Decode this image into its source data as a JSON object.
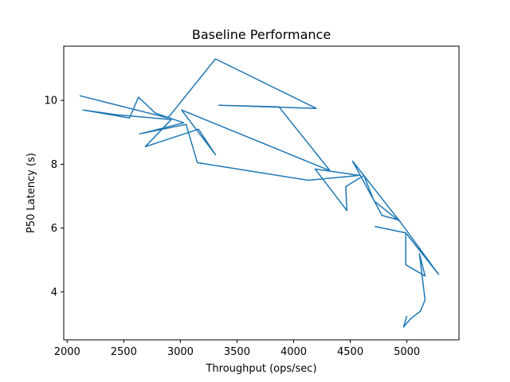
{
  "chart_data": {
    "type": "line",
    "title": "Baseline Performance",
    "xlabel": "Throughput (ops/sec)",
    "ylabel": "P50 Latency (s)",
    "xlim": [
      1970,
      5460
    ],
    "ylim": [
      2.5,
      11.7
    ],
    "xticks": [
      2000,
      2500,
      3000,
      3500,
      4000,
      4500,
      5000
    ],
    "yticks": [
      4,
      6,
      8,
      10
    ],
    "grid": false,
    "series": [
      {
        "color": "#1f77b4",
        "points": [
          [
            2110,
            10.15
          ],
          [
            2890,
            9.45
          ],
          [
            3310,
            11.3
          ],
          [
            4200,
            9.75
          ],
          [
            3340,
            9.85
          ],
          [
            3870,
            9.8
          ],
          [
            4320,
            7.8
          ],
          [
            3010,
            9.7
          ],
          [
            3310,
            8.3
          ],
          [
            3160,
            9.1
          ],
          [
            2690,
            8.55
          ],
          [
            2920,
            9.4
          ],
          [
            2440,
            9.55
          ],
          [
            2140,
            9.7
          ],
          [
            2550,
            9.45
          ],
          [
            2630,
            10.1
          ],
          [
            2780,
            9.6
          ],
          [
            3030,
            9.3
          ],
          [
            2640,
            8.95
          ],
          [
            3050,
            9.25
          ],
          [
            3150,
            8.05
          ],
          [
            4130,
            7.5
          ],
          [
            4580,
            7.65
          ],
          [
            4190,
            7.85
          ],
          [
            4470,
            6.55
          ],
          [
            4460,
            7.3
          ],
          [
            4620,
            7.65
          ],
          [
            4710,
            6.85
          ],
          [
            4940,
            6.2
          ],
          [
            4520,
            8.1
          ],
          [
            4780,
            6.4
          ],
          [
            4930,
            6.25
          ],
          [
            5280,
            4.55
          ],
          [
            4990,
            5.85
          ],
          [
            4720,
            6.05
          ],
          [
            4990,
            5.85
          ],
          [
            4990,
            4.85
          ],
          [
            5160,
            4.5
          ],
          [
            5110,
            5.2
          ],
          [
            5160,
            3.75
          ],
          [
            5120,
            3.4
          ],
          [
            5030,
            3.15
          ],
          [
            4970,
            2.9
          ],
          [
            5000,
            3.25
          ]
        ]
      }
    ]
  }
}
